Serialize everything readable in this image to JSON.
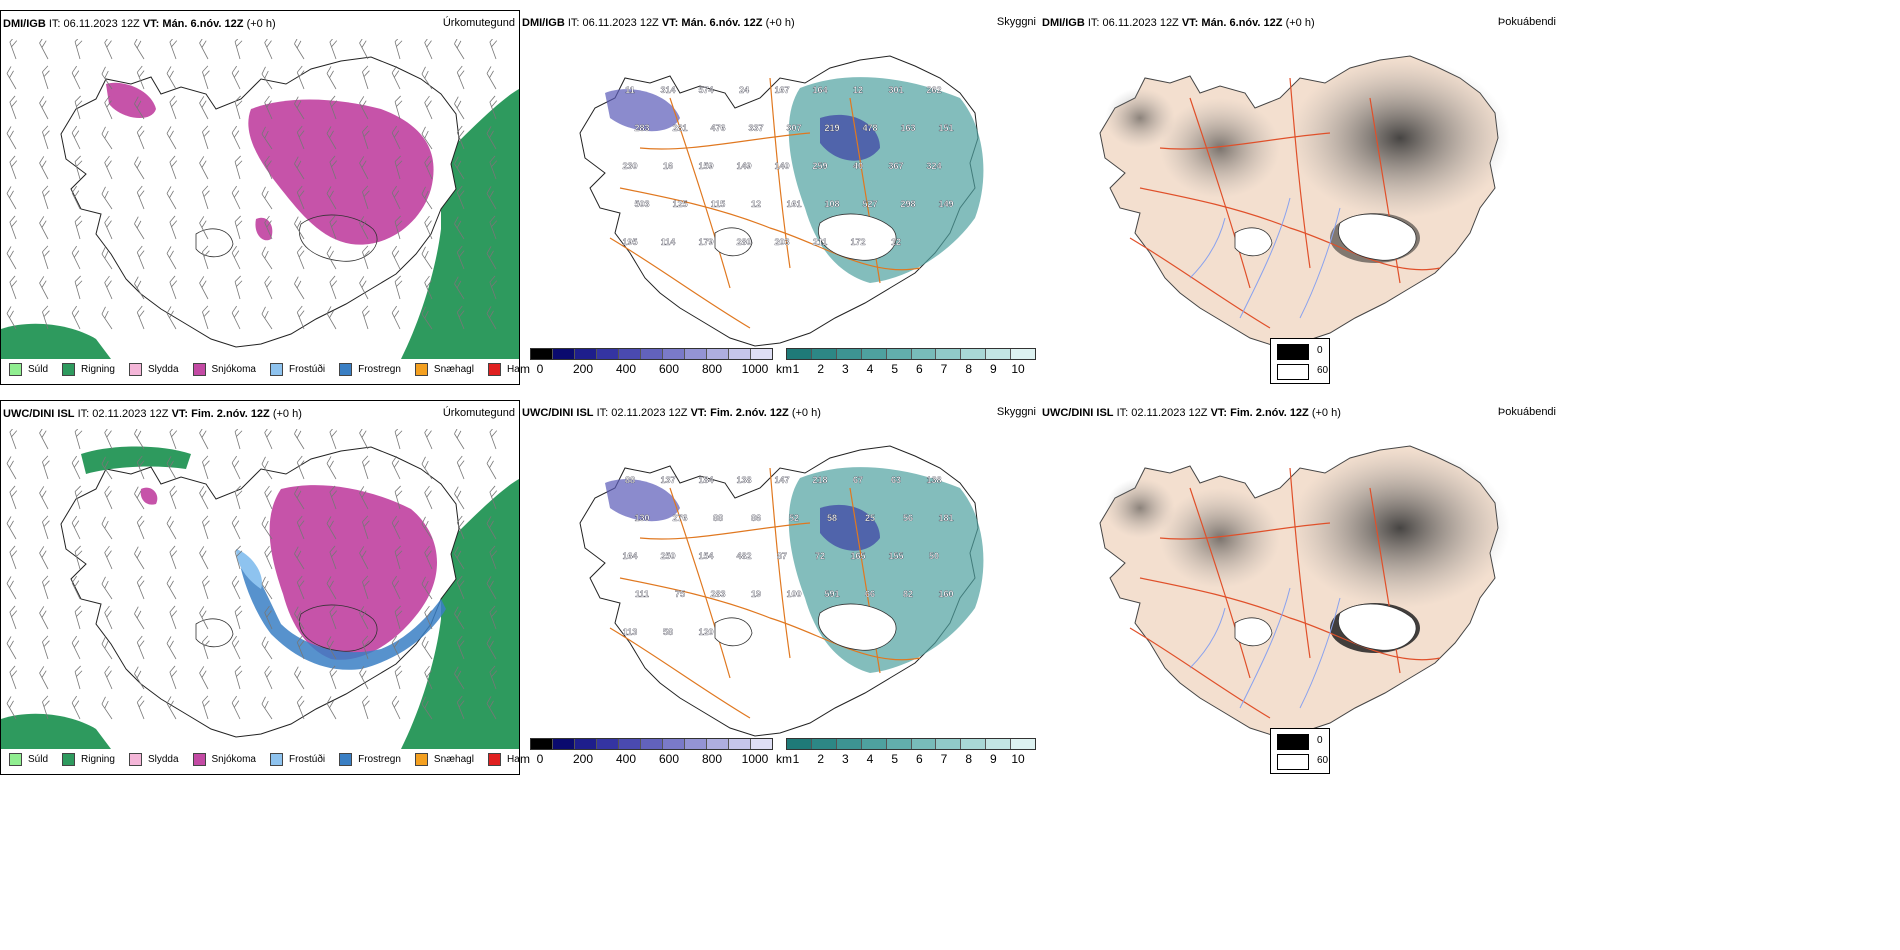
{
  "rows": [
    {
      "precip": {
        "model": "DMI/IGB",
        "it_label": "IT:",
        "it": "06.11.2023 12Z",
        "vt_label": "VT:",
        "vt": "Mán. 6.nóv. 12Z",
        "lead": "(+0 h)",
        "title": "Úrkomutegund"
      },
      "vis": {
        "model": "DMI/IGB",
        "it_label": "IT:",
        "it": "06.11.2023 12Z",
        "vt_label": "VT:",
        "vt": "Mán. 6.nóv. 12Z",
        "lead": "(+0 h)",
        "title": "Skyggni",
        "labels": [
          "11",
          "314",
          "574",
          "24",
          "167",
          "164",
          "12",
          "301",
          "262",
          "283",
          "281",
          "476",
          "337",
          "307",
          "219",
          "478",
          "163",
          "151",
          "230",
          "16",
          "159",
          "149",
          "140",
          "259",
          "40",
          "367",
          "324",
          "503",
          "125",
          "115",
          "12",
          "161",
          "108",
          "527",
          "298",
          "149",
          "195",
          "114",
          "179",
          "280",
          "203",
          "211",
          "172",
          "12"
        ]
      },
      "fog": {
        "model": "DMI/IGB",
        "it_label": "IT:",
        "it": "06.11.2023 12Z",
        "vt_label": "VT:",
        "vt": "Mán. 6.nóv. 12Z",
        "lead": "(+0 h)",
        "title": "Þokuábendi"
      }
    },
    {
      "precip": {
        "model": "UWC/DINI ISL",
        "it_label": "IT:",
        "it": "02.11.2023 12Z",
        "vt_label": "VT:",
        "vt": "Fim. 2.nóv. 12Z",
        "lead": "(+0 h)",
        "title": "Úrkomutegund"
      },
      "vis": {
        "model": "UWC/DINI ISL",
        "it_label": "IT:",
        "it": "02.11.2023 12Z",
        "vt_label": "VT:",
        "vt": "Fim. 2.nóv. 12Z",
        "lead": "(+0 h)",
        "title": "Skyggni",
        "labels": [
          "88",
          "137",
          "184",
          "138",
          "147",
          "218",
          "67",
          "63",
          "138",
          "130",
          "276",
          "88",
          "86",
          "52",
          "58",
          "25",
          "56",
          "181",
          "164",
          "250",
          "154",
          "482",
          "87",
          "72",
          "165",
          "155",
          "50",
          "111",
          "75",
          "283",
          "19",
          "100",
          "591",
          "66",
          "82",
          "160",
          "113",
          "58",
          "120"
        ]
      },
      "fog": {
        "model": "UWC/DINI ISL",
        "it_label": "IT:",
        "it": "02.11.2023 12Z",
        "vt_label": "VT:",
        "vt": "Fim. 2.nóv. 12Z",
        "lead": "(+0 h)",
        "title": "Þokuábendi"
      }
    }
  ],
  "precip_legend": [
    {
      "label": "Súld",
      "color": "#90ee90"
    },
    {
      "label": "Rigning",
      "color": "#2e9a5e"
    },
    {
      "label": "Slydda",
      "color": "#f4b6d8"
    },
    {
      "label": "Snjókoma",
      "color": "#c34aa4"
    },
    {
      "label": "Frostúði",
      "color": "#8ec3ef"
    },
    {
      "label": "Frostregn",
      "color": "#3a7fc4"
    },
    {
      "label": "Snæhagl",
      "color": "#f4a020"
    },
    {
      "label": "Haglél",
      "color": "#e02020"
    }
  ],
  "elev_bar": {
    "unit": "m",
    "ticks": [
      "0",
      "200",
      "400",
      "600",
      "800",
      "1000"
    ],
    "colors": [
      "#000000",
      "#0a0a6e",
      "#1e1e8c",
      "#3434a2",
      "#4a4ab0",
      "#6262bc",
      "#7a7ac8",
      "#9494d4",
      "#aeaee0",
      "#c6c6ea",
      "#dedef4"
    ]
  },
  "vis_bar": {
    "unit": "km",
    "ticks": [
      "1",
      "2",
      "3",
      "4",
      "5",
      "6",
      "7",
      "8",
      "9",
      "10"
    ],
    "colors": [
      "#1f7a78",
      "#2d8785",
      "#3d9492",
      "#4ea19f",
      "#62aeac",
      "#78bcba",
      "#90cac8",
      "#a9d8d6",
      "#c3e6e4",
      "#ddf2f1"
    ]
  },
  "fog_legend": [
    {
      "label": "0",
      "color": "#000000"
    },
    {
      "label": "60",
      "color": "#ffffff"
    }
  ]
}
